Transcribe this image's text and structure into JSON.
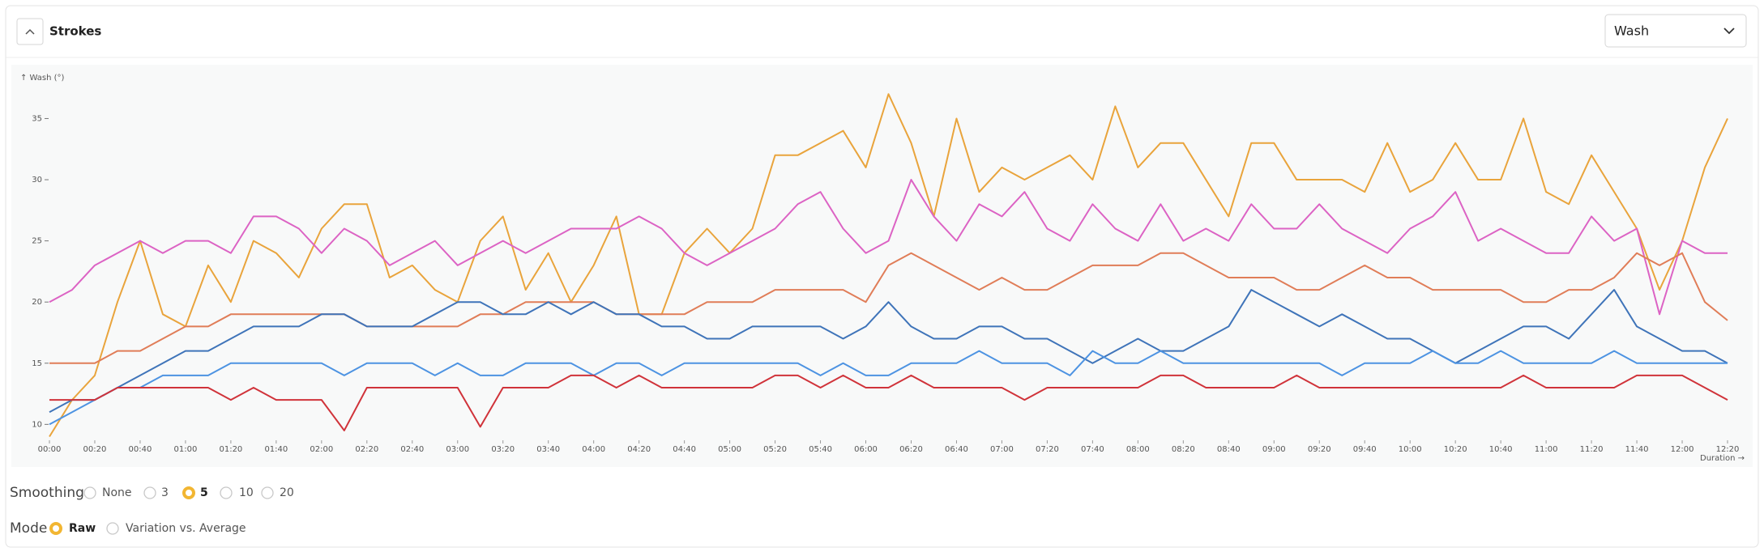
{
  "header": {
    "title": "Strokes",
    "dropdown": "Wash"
  },
  "chart_data": {
    "type": "line",
    "ylabel": "↑ Wash (°)",
    "xlabel": "Duration →",
    "x": [
      0,
      10,
      20,
      30,
      40,
      50,
      60,
      70,
      80,
      90,
      100,
      110,
      120,
      130,
      140,
      150,
      160,
      170,
      180,
      190,
      200,
      210,
      220,
      230,
      240,
      250,
      260,
      270,
      280,
      290,
      300,
      310,
      320,
      330,
      340,
      350,
      360,
      370,
      380,
      390,
      400,
      410,
      420,
      430,
      440,
      450,
      460,
      470,
      480,
      490,
      500,
      510,
      520,
      530,
      540,
      550,
      560,
      570,
      580,
      590,
      600,
      610,
      620,
      630,
      640,
      650,
      660,
      670,
      680,
      690,
      700,
      710,
      720,
      730,
      740
    ],
    "series": [
      {
        "color": "#e9a43c",
        "values": [
          9,
          12,
          14,
          20,
          25,
          19,
          18,
          23,
          20,
          25,
          24,
          22,
          26,
          28,
          28,
          22,
          23,
          21,
          20,
          25,
          27,
          21,
          24,
          20,
          23,
          27,
          19,
          19,
          24,
          26,
          24,
          26,
          32,
          32,
          33,
          34,
          31,
          37,
          33,
          27,
          35,
          29,
          31,
          30,
          31,
          32,
          30,
          36,
          31,
          33,
          33,
          30,
          27,
          33,
          33,
          30,
          30,
          30,
          29,
          33,
          29,
          30,
          33,
          30,
          30,
          35,
          29,
          28,
          32,
          29,
          26,
          21,
          25,
          31,
          35
        ]
      },
      {
        "color": "#dc63c4",
        "values": [
          20,
          21,
          23,
          24,
          25,
          24,
          25,
          25,
          24,
          27,
          27,
          26,
          24,
          26,
          25,
          23,
          24,
          25,
          23,
          24,
          25,
          24,
          25,
          26,
          26,
          26,
          27,
          26,
          24,
          23,
          24,
          25,
          26,
          28,
          29,
          26,
          24,
          25,
          30,
          27,
          25,
          28,
          27,
          29,
          26,
          25,
          28,
          26,
          25,
          28,
          25,
          26,
          25,
          28,
          26,
          26,
          28,
          26,
          25,
          24,
          26,
          27,
          29,
          25,
          26,
          25,
          24,
          24,
          27,
          25,
          26,
          19,
          25,
          24,
          24
        ]
      },
      {
        "color": "#e07d58",
        "values": [
          15,
          15,
          15,
          16,
          16,
          17,
          18,
          18,
          19,
          19,
          19,
          19,
          19,
          19,
          18,
          18,
          18,
          18,
          18,
          19,
          19,
          20,
          20,
          20,
          20,
          19,
          19,
          19,
          19,
          20,
          20,
          20,
          21,
          21,
          21,
          21,
          20,
          23,
          24,
          23,
          22,
          21,
          22,
          21,
          21,
          22,
          23,
          23,
          23,
          24,
          24,
          23,
          22,
          22,
          22,
          21,
          21,
          22,
          23,
          22,
          22,
          21,
          21,
          21,
          21,
          20,
          20,
          21,
          21,
          22,
          24,
          23,
          24,
          20,
          18.5
        ]
      },
      {
        "color": "#3f74b9",
        "values": [
          11,
          12,
          12,
          13,
          14,
          15,
          16,
          16,
          17,
          18,
          18,
          18,
          19,
          19,
          18,
          18,
          18,
          19,
          20,
          20,
          19,
          19,
          20,
          19,
          20,
          19,
          19,
          18,
          18,
          17,
          17,
          18,
          18,
          18,
          18,
          17,
          18,
          20,
          18,
          17,
          17,
          18,
          18,
          17,
          17,
          16,
          15,
          16,
          17,
          16,
          16,
          17,
          18,
          21,
          20,
          19,
          18,
          19,
          18,
          17,
          17,
          16,
          15,
          16,
          17,
          18,
          18,
          17,
          19,
          21,
          18,
          17,
          16,
          16,
          15
        ]
      },
      {
        "color": "#4d93e2",
        "values": [
          10,
          11,
          12,
          13,
          13,
          14,
          14,
          14,
          15,
          15,
          15,
          15,
          15,
          14,
          15,
          15,
          15,
          14,
          15,
          14,
          14,
          15,
          15,
          15,
          14,
          15,
          15,
          14,
          15,
          15,
          15,
          15,
          15,
          15,
          14,
          15,
          14,
          14,
          15,
          15,
          15,
          16,
          15,
          15,
          15,
          14,
          16,
          15,
          15,
          16,
          15,
          15,
          15,
          15,
          15,
          15,
          15,
          14,
          15,
          15,
          15,
          16,
          15,
          15,
          16,
          15,
          15,
          15,
          15,
          16,
          15,
          15,
          15,
          15,
          15
        ]
      },
      {
        "color": "#d0333a",
        "values": [
          12,
          12,
          12,
          13,
          13,
          13,
          13,
          13,
          12,
          13,
          12,
          12,
          12,
          9.5,
          13,
          13,
          13,
          13,
          13,
          9.8,
          13,
          13,
          13,
          14,
          14,
          13,
          14,
          13,
          13,
          13,
          13,
          13,
          14,
          14,
          13,
          14,
          13,
          13,
          14,
          13,
          13,
          13,
          13,
          12,
          13,
          13,
          13,
          13,
          13,
          14,
          14,
          13,
          13,
          13,
          13,
          14,
          13,
          13,
          13,
          13,
          13,
          13,
          13,
          13,
          13,
          14,
          13,
          13,
          13,
          13,
          14,
          14,
          14,
          13,
          12
        ]
      }
    ],
    "xlim": [
      0,
      742
    ],
    "ylim": [
      8.7,
      39
    ],
    "yticks": [
      10,
      15,
      20,
      25,
      30,
      35
    ],
    "xticks": [
      {
        "value": 0,
        "label": "00:00"
      },
      {
        "value": 20,
        "label": "00:20"
      },
      {
        "value": 40,
        "label": "00:40"
      },
      {
        "value": 60,
        "label": "01:00"
      },
      {
        "value": 80,
        "label": "01:20"
      },
      {
        "value": 100,
        "label": "01:40"
      },
      {
        "value": 120,
        "label": "02:00"
      },
      {
        "value": 140,
        "label": "02:20"
      },
      {
        "value": 160,
        "label": "02:40"
      },
      {
        "value": 180,
        "label": "03:00"
      },
      {
        "value": 200,
        "label": "03:20"
      },
      {
        "value": 220,
        "label": "03:40"
      },
      {
        "value": 240,
        "label": "04:00"
      },
      {
        "value": 260,
        "label": "04:20"
      },
      {
        "value": 280,
        "label": "04:40"
      },
      {
        "value": 300,
        "label": "05:00"
      },
      {
        "value": 320,
        "label": "05:20"
      },
      {
        "value": 340,
        "label": "05:40"
      },
      {
        "value": 360,
        "label": "06:00"
      },
      {
        "value": 380,
        "label": "06:20"
      },
      {
        "value": 400,
        "label": "06:40"
      },
      {
        "value": 420,
        "label": "07:00"
      },
      {
        "value": 440,
        "label": "07:20"
      },
      {
        "value": 460,
        "label": "07:40"
      },
      {
        "value": 480,
        "label": "08:00"
      },
      {
        "value": 500,
        "label": "08:20"
      },
      {
        "value": 520,
        "label": "08:40"
      },
      {
        "value": 540,
        "label": "09:00"
      },
      {
        "value": 560,
        "label": "09:20"
      },
      {
        "value": 580,
        "label": "09:40"
      },
      {
        "value": 600,
        "label": "10:00"
      },
      {
        "value": 620,
        "label": "10:20"
      },
      {
        "value": 640,
        "label": "10:40"
      },
      {
        "value": 660,
        "label": "11:00"
      },
      {
        "value": 680,
        "label": "11:20"
      },
      {
        "value": 700,
        "label": "11:40"
      },
      {
        "value": 720,
        "label": "12:00"
      },
      {
        "value": 740,
        "label": "12:20"
      }
    ],
    "grid": false
  },
  "smoothing": {
    "label": "Smoothing",
    "options": [
      "None",
      "3",
      "5",
      "10",
      "20"
    ],
    "selected": 2
  },
  "mode": {
    "label": "Mode",
    "options": [
      "Raw",
      "Variation vs. Average"
    ],
    "selected": 0
  }
}
